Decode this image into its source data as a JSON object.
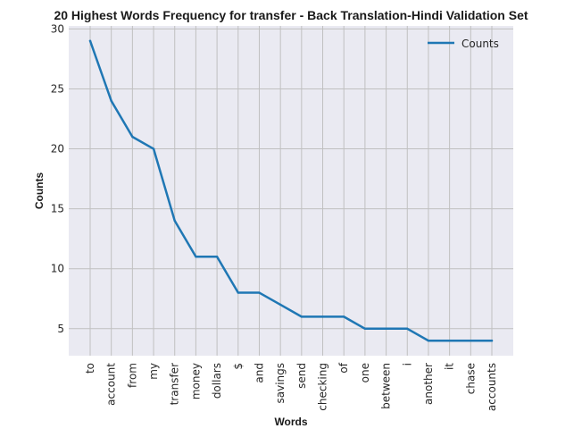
{
  "chart_data": {
    "type": "line",
    "title": "20 Highest Words Frequency for transfer - Back Translation-Hindi Validation Set",
    "xlabel": "Words",
    "ylabel": "Counts",
    "categories": [
      "to",
      "account",
      "from",
      "my",
      "transfer",
      "money",
      "dollars",
      "$",
      "and",
      "savings",
      "send",
      "checking",
      "of",
      "one",
      "between",
      "i",
      "another",
      "it",
      "chase",
      "accounts"
    ],
    "series": [
      {
        "name": "Counts",
        "values": [
          29,
          24,
          21,
          20,
          14,
          11,
          11,
          8,
          8,
          7,
          6,
          6,
          6,
          5,
          5,
          5,
          4,
          4,
          4,
          4
        ]
      }
    ],
    "ylim": [
      2.75,
      30.25
    ],
    "yticks": [
      5,
      10,
      15,
      20,
      25,
      30
    ],
    "grid": true,
    "legend_position": "top-right"
  },
  "colors": {
    "background": "#eaeaf2",
    "grid": "#c0c0c0",
    "line": "#1f77b4"
  }
}
